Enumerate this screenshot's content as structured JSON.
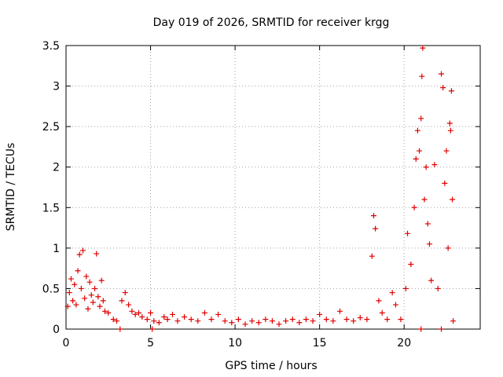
{
  "chart_data": {
    "type": "scatter",
    "title": "Day 019 of 2026, SRMTID for receiver krgg",
    "xlabel": "GPS time / hours",
    "ylabel": "SRMTID / TECUs",
    "xlim": [
      0,
      24.5
    ],
    "ylim": [
      0,
      3.5
    ],
    "xticks": [
      0,
      5,
      10,
      15,
      20
    ],
    "xtick_labels": [
      "0",
      "5",
      "10",
      "15",
      "20"
    ],
    "yticks": [
      0,
      0.5,
      1,
      1.5,
      2,
      2.5,
      3,
      3.5
    ],
    "ytick_labels": [
      "0",
      "0.5",
      "1",
      "1.5",
      "2",
      "2.5",
      "3",
      "3.5"
    ],
    "grid": true,
    "marker": "+",
    "series": [
      {
        "name": "SRMTID",
        "color": "#e00000",
        "points": [
          [
            0.1,
            0.28
          ],
          [
            0.2,
            0.45
          ],
          [
            0.3,
            0.62
          ],
          [
            0.4,
            0.35
          ],
          [
            0.5,
            0.55
          ],
          [
            0.6,
            0.3
          ],
          [
            0.7,
            0.72
          ],
          [
            0.8,
            0.92
          ],
          [
            0.9,
            0.5
          ],
          [
            1.0,
            0.97
          ],
          [
            1.1,
            0.38
          ],
          [
            1.2,
            0.65
          ],
          [
            1.3,
            0.25
          ],
          [
            1.4,
            0.58
          ],
          [
            1.5,
            0.42
          ],
          [
            1.6,
            0.33
          ],
          [
            1.7,
            0.5
          ],
          [
            1.8,
            0.93
          ],
          [
            1.9,
            0.4
          ],
          [
            2.0,
            0.28
          ],
          [
            2.1,
            0.6
          ],
          [
            2.2,
            0.35
          ],
          [
            2.3,
            0.22
          ],
          [
            2.5,
            0.2
          ],
          [
            2.8,
            0.12
          ],
          [
            3.0,
            0.1
          ],
          [
            3.3,
            0.35
          ],
          [
            3.5,
            0.45
          ],
          [
            3.7,
            0.3
          ],
          [
            3.9,
            0.22
          ],
          [
            4.1,
            0.18
          ],
          [
            4.3,
            0.2
          ],
          [
            4.5,
            0.15
          ],
          [
            4.8,
            0.12
          ],
          [
            5.0,
            0.2
          ],
          [
            5.2,
            0.1
          ],
          [
            5.5,
            0.08
          ],
          [
            5.8,
            0.15
          ],
          [
            6.0,
            0.12
          ],
          [
            6.3,
            0.18
          ],
          [
            6.6,
            0.1
          ],
          [
            7.0,
            0.15
          ],
          [
            7.4,
            0.12
          ],
          [
            7.8,
            0.1
          ],
          [
            8.2,
            0.2
          ],
          [
            8.6,
            0.12
          ],
          [
            9.0,
            0.18
          ],
          [
            9.4,
            0.1
          ],
          [
            9.8,
            0.08
          ],
          [
            10.2,
            0.12
          ],
          [
            10.6,
            0.06
          ],
          [
            11.0,
            0.1
          ],
          [
            11.4,
            0.08
          ],
          [
            11.8,
            0.12
          ],
          [
            12.2,
            0.1
          ],
          [
            12.6,
            0.06
          ],
          [
            13.0,
            0.1
          ],
          [
            13.4,
            0.12
          ],
          [
            13.8,
            0.08
          ],
          [
            14.2,
            0.12
          ],
          [
            14.6,
            0.1
          ],
          [
            15.0,
            0.18
          ],
          [
            15.4,
            0.12
          ],
          [
            15.8,
            0.1
          ],
          [
            16.2,
            0.22
          ],
          [
            16.6,
            0.12
          ],
          [
            17.0,
            0.1
          ],
          [
            17.4,
            0.14
          ],
          [
            17.8,
            0.12
          ],
          [
            18.1,
            0.9
          ],
          [
            18.2,
            1.4
          ],
          [
            18.3,
            1.24
          ],
          [
            18.5,
            0.35
          ],
          [
            18.7,
            0.2
          ],
          [
            19.0,
            0.12
          ],
          [
            19.3,
            0.45
          ],
          [
            19.5,
            0.3
          ],
          [
            19.8,
            0.12
          ],
          [
            20.1,
            0.5
          ],
          [
            20.2,
            1.18
          ],
          [
            20.4,
            0.8
          ],
          [
            20.6,
            1.5
          ],
          [
            20.7,
            2.1
          ],
          [
            20.8,
            2.45
          ],
          [
            20.9,
            2.2
          ],
          [
            21.0,
            2.6
          ],
          [
            21.05,
            3.12
          ],
          [
            21.1,
            3.47
          ],
          [
            21.2,
            1.6
          ],
          [
            21.3,
            2.0
          ],
          [
            21.4,
            1.3
          ],
          [
            21.5,
            1.05
          ],
          [
            21.6,
            0.6
          ],
          [
            21.8,
            2.03
          ],
          [
            22.0,
            0.5
          ],
          [
            22.2,
            3.15
          ],
          [
            22.3,
            2.98
          ],
          [
            22.4,
            1.8
          ],
          [
            22.5,
            2.2
          ],
          [
            22.6,
            1.0
          ],
          [
            22.7,
            2.54
          ],
          [
            22.75,
            2.45
          ],
          [
            22.8,
            2.94
          ],
          [
            22.85,
            1.6
          ],
          [
            22.9,
            0.1
          ],
          [
            21.0,
            0.0
          ],
          [
            22.2,
            0.0
          ],
          [
            3.2,
            0.0
          ],
          [
            5.1,
            0.0
          ]
        ]
      }
    ]
  }
}
